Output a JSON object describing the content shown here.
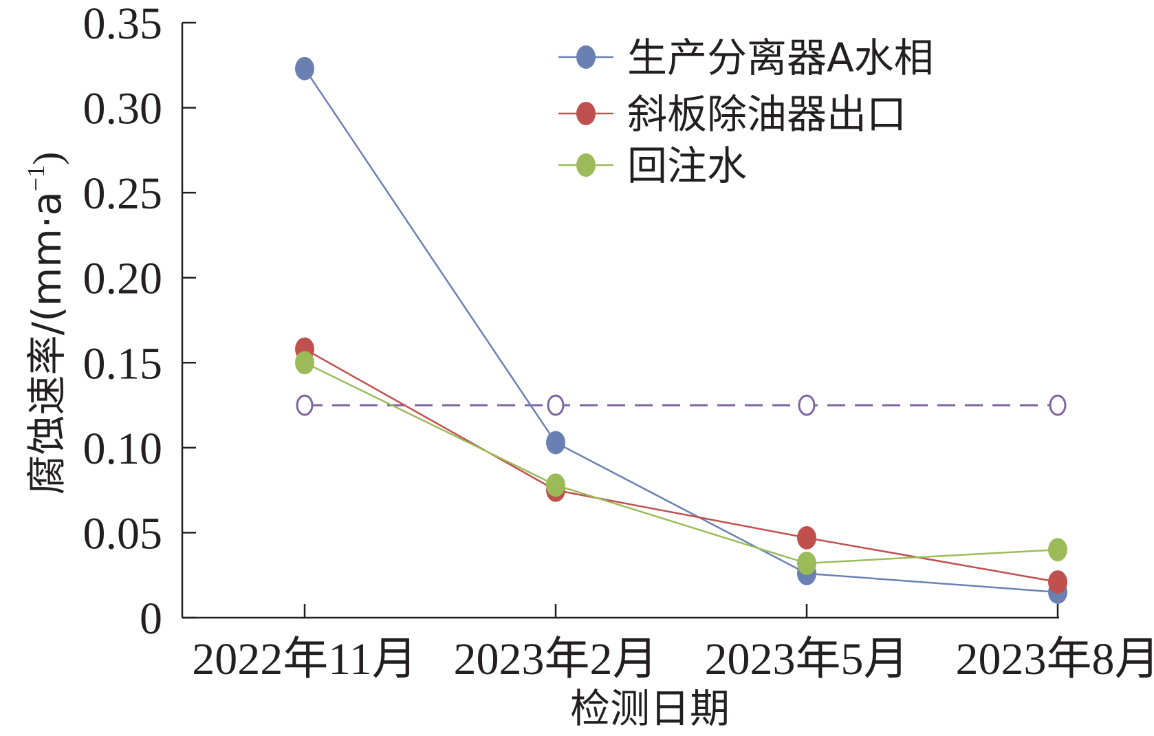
{
  "chart_data": {
    "type": "line",
    "xlabel": "检测日期",
    "ylabel": "腐蚀速率/(mm·a",
    "ylabel_sup": "−1",
    "ylabel_close": ")",
    "categories": [
      "2022年11月",
      "2023年2月",
      "2023年5月",
      "2023年8月"
    ],
    "ylim": [
      0,
      0.35
    ],
    "yticks": [
      0,
      0.05,
      0.1,
      0.15,
      0.2,
      0.25,
      0.3,
      0.35
    ],
    "ytick_labels": [
      "0",
      "0.05",
      "0.10",
      "0.15",
      "0.20",
      "0.25",
      "0.30",
      "0.35"
    ],
    "grid": false,
    "legend_position": "top-right",
    "series": [
      {
        "name": "生产分离器A水相",
        "color": "#6a80b3",
        "values": [
          0.323,
          0.103,
          0.026,
          0.015
        ]
      },
      {
        "name": "斜板除油器出口",
        "color": "#c0504d",
        "values": [
          0.158,
          0.075,
          0.047,
          0.021
        ]
      },
      {
        "name": "回注水",
        "color": "#9bbb59",
        "values": [
          0.15,
          0.078,
          0.032,
          0.04
        ]
      }
    ],
    "reference_line": {
      "color": "#8064a2",
      "values": [
        0.125,
        0.125,
        0.125,
        0.125
      ]
    }
  }
}
